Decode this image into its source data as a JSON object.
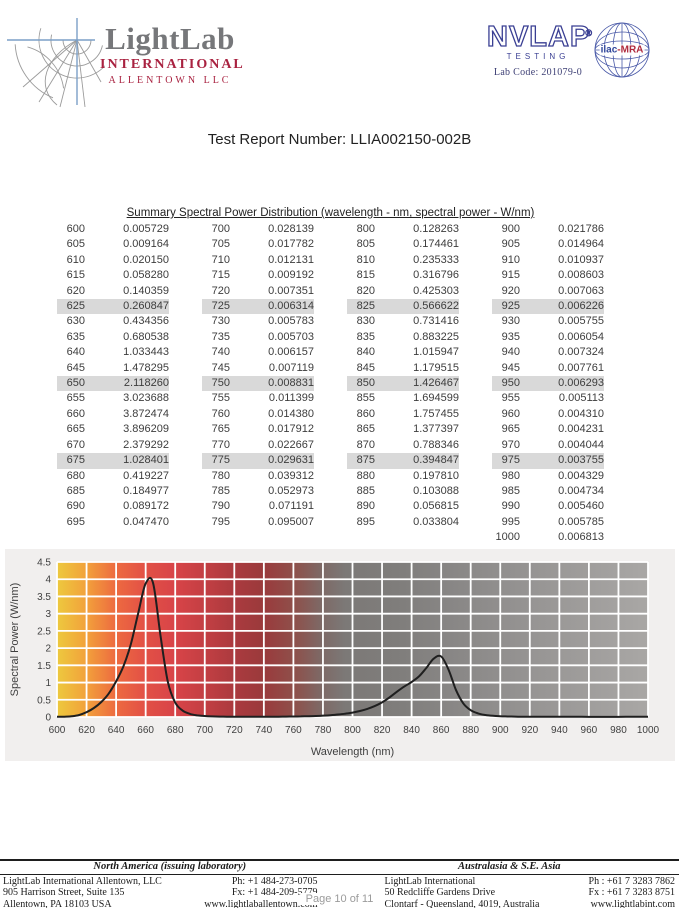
{
  "title": "Test Report Number: LLIA002150-002B",
  "header": {
    "logo": {
      "name": "LightLab",
      "sub1": "INTERNATIONAL",
      "sub2": "ALLENTOWN  LLC"
    },
    "nvlap": {
      "name": "NVLAP",
      "reg": "®",
      "sub": "TESTING",
      "lab_code": "Lab Code: 201079-0"
    },
    "ilac": {
      "label_blue": "ilac",
      "label_red": "-MRA"
    }
  },
  "colors": {
    "logo_gray": "#76777a",
    "logo_red": "#a92240",
    "nvlap_blue": "#3a3f93",
    "highlight": "#d9d9d9",
    "chart_band_bg": "#f1efee",
    "grid": "#ffffff",
    "curve": "#1f1f1f",
    "page_number_gray": "#9b9b9b"
  },
  "table": {
    "caption": "Summary Spectral Power Distribution (wavelength - nm, spectral power - W/nm)",
    "highlighted": [
      625,
      650,
      675,
      725,
      750,
      775,
      825,
      850,
      875,
      925,
      950,
      975
    ],
    "groups": [
      {
        "rows": [
          [
            600,
            "0.005729"
          ],
          [
            605,
            "0.009164"
          ],
          [
            610,
            "0.020150"
          ],
          [
            615,
            "0.058280"
          ],
          [
            620,
            "0.140359"
          ],
          [
            625,
            "0.260847"
          ],
          [
            630,
            "0.434356"
          ],
          [
            635,
            "0.680538"
          ],
          [
            640,
            "1.033443"
          ],
          [
            645,
            "1.478295"
          ],
          [
            650,
            "2.118260"
          ],
          [
            655,
            "3.023688"
          ],
          [
            660,
            "3.872474"
          ],
          [
            665,
            "3.896209"
          ],
          [
            670,
            "2.379292"
          ],
          [
            675,
            "1.028401"
          ],
          [
            680,
            "0.419227"
          ],
          [
            685,
            "0.184977"
          ],
          [
            690,
            "0.089172"
          ],
          [
            695,
            "0.047470"
          ]
        ]
      },
      {
        "rows": [
          [
            700,
            "0.028139"
          ],
          [
            705,
            "0.017782"
          ],
          [
            710,
            "0.012131"
          ],
          [
            715,
            "0.009192"
          ],
          [
            720,
            "0.007351"
          ],
          [
            725,
            "0.006314"
          ],
          [
            730,
            "0.005783"
          ],
          [
            735,
            "0.005703"
          ],
          [
            740,
            "0.006157"
          ],
          [
            745,
            "0.007119"
          ],
          [
            750,
            "0.008831"
          ],
          [
            755,
            "0.011399"
          ],
          [
            760,
            "0.014380"
          ],
          [
            765,
            "0.017912"
          ],
          [
            770,
            "0.022667"
          ],
          [
            775,
            "0.029631"
          ],
          [
            780,
            "0.039312"
          ],
          [
            785,
            "0.052973"
          ],
          [
            790,
            "0.071191"
          ],
          [
            795,
            "0.095007"
          ]
        ]
      },
      {
        "rows": [
          [
            800,
            "0.128263"
          ],
          [
            805,
            "0.174461"
          ],
          [
            810,
            "0.235333"
          ],
          [
            815,
            "0.316796"
          ],
          [
            820,
            "0.425303"
          ],
          [
            825,
            "0.566622"
          ],
          [
            830,
            "0.731416"
          ],
          [
            835,
            "0.883225"
          ],
          [
            840,
            "1.015947"
          ],
          [
            845,
            "1.179515"
          ],
          [
            850,
            "1.426467"
          ],
          [
            855,
            "1.694599"
          ],
          [
            860,
            "1.757455"
          ],
          [
            865,
            "1.377397"
          ],
          [
            870,
            "0.788346"
          ],
          [
            875,
            "0.394847"
          ],
          [
            880,
            "0.197810"
          ],
          [
            885,
            "0.103088"
          ],
          [
            890,
            "0.056815"
          ],
          [
            895,
            "0.033804"
          ]
        ]
      },
      {
        "rows": [
          [
            900,
            "0.021786"
          ],
          [
            905,
            "0.014964"
          ],
          [
            910,
            "0.010937"
          ],
          [
            915,
            "0.008603"
          ],
          [
            920,
            "0.007063"
          ],
          [
            925,
            "0.006226"
          ],
          [
            930,
            "0.005755"
          ],
          [
            935,
            "0.006054"
          ],
          [
            940,
            "0.007324"
          ],
          [
            945,
            "0.007761"
          ],
          [
            950,
            "0.006293"
          ],
          [
            955,
            "0.005113"
          ],
          [
            960,
            "0.004310"
          ],
          [
            965,
            "0.004231"
          ],
          [
            970,
            "0.004044"
          ],
          [
            975,
            "0.003755"
          ],
          [
            980,
            "0.004329"
          ],
          [
            985,
            "0.004734"
          ],
          [
            990,
            "0.005460"
          ],
          [
            995,
            "0.005785"
          ],
          [
            1000,
            "0.006813"
          ]
        ]
      }
    ]
  },
  "chart_data": {
    "type": "line",
    "title": "",
    "xlabel": "Wavelength (nm)",
    "ylabel": "Spectral Power (W/nm)",
    "xlim": [
      600,
      1000
    ],
    "ylim": [
      0,
      4.5
    ],
    "grid": true,
    "x_ticks": [
      600,
      620,
      640,
      660,
      680,
      700,
      720,
      740,
      760,
      780,
      800,
      820,
      840,
      860,
      880,
      900,
      920,
      940,
      960,
      980,
      1000
    ],
    "y_ticks": [
      0,
      0.5,
      1,
      1.5,
      2,
      2.5,
      3,
      3.5,
      4,
      4.5
    ],
    "x": [
      600,
      605,
      610,
      615,
      620,
      625,
      630,
      635,
      640,
      645,
      650,
      655,
      660,
      665,
      670,
      675,
      680,
      685,
      690,
      695,
      700,
      705,
      710,
      715,
      720,
      725,
      730,
      735,
      740,
      745,
      750,
      755,
      760,
      765,
      770,
      775,
      780,
      785,
      790,
      795,
      800,
      805,
      810,
      815,
      820,
      825,
      830,
      835,
      840,
      845,
      850,
      855,
      860,
      865,
      870,
      875,
      880,
      885,
      890,
      895,
      900,
      905,
      910,
      915,
      920,
      925,
      930,
      935,
      940,
      945,
      950,
      955,
      960,
      965,
      970,
      975,
      980,
      985,
      990,
      995,
      1000
    ],
    "y": [
      0.005729,
      0.009164,
      0.02015,
      0.05828,
      0.140359,
      0.260847,
      0.434356,
      0.680538,
      1.033443,
      1.478295,
      2.11826,
      3.023688,
      3.872474,
      3.896209,
      2.379292,
      1.028401,
      0.419227,
      0.184977,
      0.089172,
      0.04747,
      0.028139,
      0.017782,
      0.012131,
      0.009192,
      0.007351,
      0.006314,
      0.005783,
      0.005703,
      0.006157,
      0.007119,
      0.008831,
      0.011399,
      0.01438,
      0.017912,
      0.022667,
      0.029631,
      0.039312,
      0.052973,
      0.071191,
      0.095007,
      0.128263,
      0.174461,
      0.235333,
      0.316796,
      0.425303,
      0.566622,
      0.731416,
      0.883225,
      1.015947,
      1.179515,
      1.426467,
      1.694599,
      1.757455,
      1.377397,
      0.788346,
      0.394847,
      0.19781,
      0.103088,
      0.056815,
      0.033804,
      0.021786,
      0.014964,
      0.010937,
      0.008603,
      0.007063,
      0.006226,
      0.005755,
      0.006054,
      0.007324,
      0.007761,
      0.006293,
      0.005113,
      0.00431,
      0.004231,
      0.004044,
      0.003755,
      0.004329,
      0.004734,
      0.00546,
      0.005785,
      0.006813
    ],
    "background_gradient": [
      {
        "at": 600,
        "color": "#edc93e"
      },
      {
        "at": 620,
        "color": "#f2a13b"
      },
      {
        "at": 640,
        "color": "#ed6a40"
      },
      {
        "at": 660,
        "color": "#e25046"
      },
      {
        "at": 680,
        "color": "#d84448"
      },
      {
        "at": 700,
        "color": "#c33f43"
      },
      {
        "at": 720,
        "color": "#ab3a3e"
      },
      {
        "at": 740,
        "color": "#9a3a3c"
      },
      {
        "at": 760,
        "color": "#8f4f4a"
      },
      {
        "at": 778,
        "color": "#7e6865"
      },
      {
        "at": 795,
        "color": "#7c7977"
      },
      {
        "at": 830,
        "color": "#7f7d7b"
      },
      {
        "at": 870,
        "color": "#898786"
      },
      {
        "at": 920,
        "color": "#969493"
      },
      {
        "at": 1000,
        "color": "#a9a7a5"
      }
    ]
  },
  "footer": {
    "regions": [
      {
        "heading": "North America (issuing laboratory)",
        "lines": [
          {
            "left": "LightLab International Allentown, LLC",
            "right": "Ph: +1 484-273-0705"
          },
          {
            "left": "905 Harrison Street, Suite 135",
            "right": "Fx: +1 484-209-5779"
          },
          {
            "left": "Allentown, PA  18103   USA",
            "right": "www.lightlaballentown.com"
          }
        ]
      },
      {
        "heading": "Australasia & S.E. Asia",
        "lines": [
          {
            "left": "LightLab International",
            "right": "Ph : +61 7 3283 7862"
          },
          {
            "left": "50 Redcliffe Gardens Drive",
            "right": "Fx : +61 7 3283 8751"
          },
          {
            "left": "Clontarf - Queensland, 4019, Australia",
            "right": "www.lightlabint.com"
          }
        ]
      }
    ],
    "page_label": "Page 10 of 11"
  }
}
